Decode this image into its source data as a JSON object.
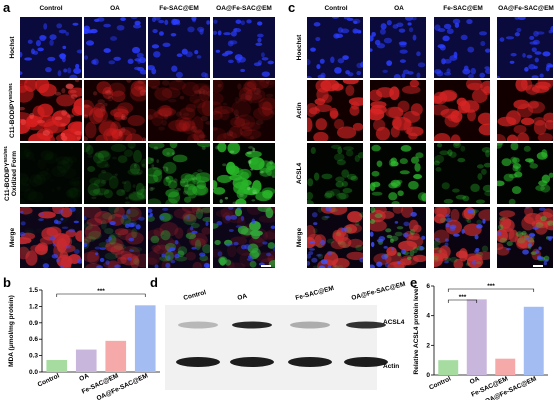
{
  "panel_a": {
    "letter": "a",
    "columns": [
      "Control",
      "OA",
      "Fe-SAC@EM",
      "OA@Fe-SAC@EM"
    ],
    "rows": [
      {
        "text": "Hochst"
      },
      {
        "text": "C11-BODIPY",
        "sup": "581/591"
      },
      {
        "text": "C11-BODIPY",
        "sup": "581/591",
        "line2": "Oxidized Form"
      },
      {
        "text": "Merge"
      }
    ]
  },
  "panel_c": {
    "letter": "c",
    "columns": [
      "Control",
      "OA",
      "Fe-SAC@EM",
      "OA@Fe-SAC@EM"
    ],
    "rows": [
      "Hoechst",
      "Actin",
      "ACSL4",
      "Merge"
    ]
  },
  "panel_d": {
    "letter": "d",
    "lanes": [
      "Control",
      "OA",
      "Fe-SAC@EM",
      "OA@Fe-SAC@EM"
    ],
    "bands": [
      "ACSL4",
      "Actin"
    ]
  },
  "chart_data": [
    {
      "type": "bar",
      "letter": "b",
      "ylabel": "MDA (μmol/mg protein)",
      "categories": [
        "Control",
        "OA",
        "Fe-SAC@EM",
        "OA@Fe-SAC@EM"
      ],
      "values": [
        0.22,
        0.41,
        0.57,
        1.22
      ],
      "colors": [
        "#a6dca0",
        "#c9b6dc",
        "#f5aaa9",
        "#a3bdf2"
      ],
      "ylim": [
        0,
        1.5
      ],
      "yticks": [
        {
          "value": 0,
          "label": "0.0"
        },
        {
          "value": 0.3,
          "label": "0.3"
        },
        {
          "value": 0.6,
          "label": "0.6"
        },
        {
          "value": 0.9,
          "label": "0.9"
        },
        {
          "value": 1.2,
          "label": "1.2"
        },
        {
          "value": 1.5,
          "label": "1.5"
        }
      ],
      "annotations": [
        "***"
      ]
    },
    {
      "type": "bar",
      "letter": "e",
      "ylabel": "Relative ACSL4 protein level",
      "categories": [
        "Control",
        "OA",
        "Fe-SAC@EM",
        "OA@Fe-SAC@EM"
      ],
      "values": [
        1.0,
        5.1,
        1.1,
        4.6
      ],
      "colors": [
        "#a6dca0",
        "#c9b6dc",
        "#f5aaa9",
        "#a3bdf2"
      ],
      "ylim": [
        0,
        6
      ],
      "yticks": [
        0,
        2,
        4,
        6
      ],
      "annotations": [
        "***",
        "***"
      ]
    }
  ]
}
